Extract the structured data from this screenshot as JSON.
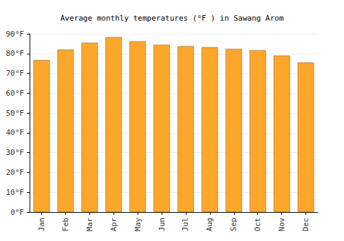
{
  "chart_data": {
    "type": "bar",
    "title": "Average monthly temperatures (°F ) in Sawang Arom",
    "categories": [
      "Jan",
      "Feb",
      "Mar",
      "Apr",
      "May",
      "Jun",
      "Jul",
      "Aug",
      "Sep",
      "Oct",
      "Nov",
      "Dec"
    ],
    "values": [
      76.7,
      82.0,
      85.5,
      88.3,
      86.2,
      84.5,
      83.8,
      83.2,
      82.4,
      81.7,
      79.0,
      75.5
    ],
    "color": "#fca72c",
    "ylim": [
      0,
      90
    ],
    "yticks": [
      {
        "value": 0,
        "label": "0°F"
      },
      {
        "value": 10,
        "label": "10°F"
      },
      {
        "value": 20,
        "label": "20°F"
      },
      {
        "value": 30,
        "label": "30°F"
      },
      {
        "value": 40,
        "label": "40°F"
      },
      {
        "value": 50,
        "label": "50°F"
      },
      {
        "value": 60,
        "label": "60°F"
      },
      {
        "value": 70,
        "label": "70°F"
      },
      {
        "value": 80,
        "label": "80°F"
      },
      {
        "value": 90,
        "label": "90°F"
      }
    ],
    "grid": true
  }
}
